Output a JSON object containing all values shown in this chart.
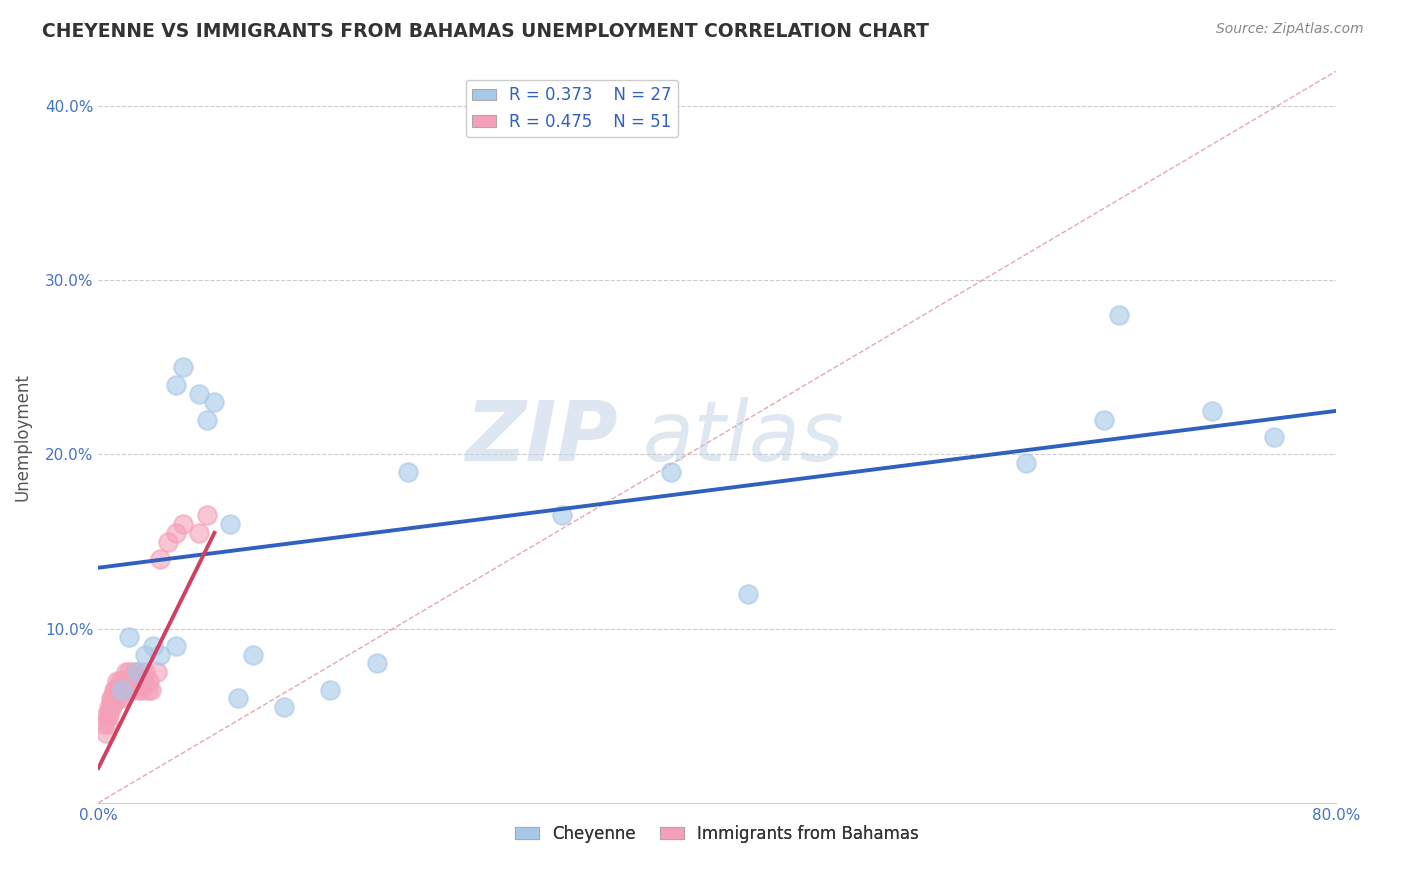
{
  "title": "CHEYENNE VS IMMIGRANTS FROM BAHAMAS UNEMPLOYMENT CORRELATION CHART",
  "source": "Source: ZipAtlas.com",
  "xlabel": "",
  "ylabel": "Unemployment",
  "xlim": [
    0,
    0.8
  ],
  "ylim": [
    0,
    0.42
  ],
  "xticks": [
    0.0,
    0.1,
    0.2,
    0.3,
    0.4,
    0.5,
    0.6,
    0.7,
    0.8
  ],
  "xticklabels": [
    "0.0%",
    "",
    "",
    "",
    "",
    "",
    "",
    "",
    "80.0%"
  ],
  "yticks": [
    0.0,
    0.1,
    0.2,
    0.3,
    0.4
  ],
  "yticklabels": [
    "",
    "10.0%",
    "20.0%",
    "30.0%",
    "40.0%"
  ],
  "legend_r1": "R = 0.373",
  "legend_n1": "N = 27",
  "legend_r2": "R = 0.475",
  "legend_n2": "N = 51",
  "cheyenne_color": "#a8c8e8",
  "bahamas_color": "#f4a0b8",
  "cheyenne_line_color": "#3060c0",
  "bahamas_line_color": "#d04060",
  "ref_line_color": "#e08090",
  "watermark_zip": "ZIP",
  "watermark_atlas": "atlas",
  "background_color": "#ffffff",
  "grid_color": "#cccccc",
  "cheyenne_x": [
    0.015,
    0.02,
    0.025,
    0.03,
    0.035,
    0.04,
    0.05,
    0.05,
    0.055,
    0.065,
    0.07,
    0.075,
    0.085,
    0.09,
    0.1,
    0.12,
    0.15,
    0.18,
    0.2,
    0.3,
    0.37,
    0.42,
    0.6,
    0.65,
    0.66,
    0.72,
    0.76
  ],
  "cheyenne_y": [
    0.065,
    0.095,
    0.075,
    0.085,
    0.09,
    0.085,
    0.09,
    0.24,
    0.25,
    0.235,
    0.22,
    0.23,
    0.16,
    0.06,
    0.085,
    0.055,
    0.065,
    0.08,
    0.19,
    0.165,
    0.19,
    0.12,
    0.195,
    0.22,
    0.28,
    0.225,
    0.21
  ],
  "bahamas_x": [
    0.003,
    0.004,
    0.005,
    0.006,
    0.006,
    0.007,
    0.007,
    0.008,
    0.008,
    0.009,
    0.009,
    0.01,
    0.01,
    0.011,
    0.011,
    0.012,
    0.012,
    0.013,
    0.013,
    0.014,
    0.014,
    0.015,
    0.015,
    0.016,
    0.016,
    0.017,
    0.017,
    0.018,
    0.018,
    0.019,
    0.02,
    0.021,
    0.022,
    0.023,
    0.024,
    0.025,
    0.026,
    0.027,
    0.028,
    0.029,
    0.03,
    0.032,
    0.033,
    0.034,
    0.038,
    0.04,
    0.045,
    0.05,
    0.055,
    0.065,
    0.07
  ],
  "bahamas_y": [
    0.045,
    0.05,
    0.04,
    0.05,
    0.045,
    0.055,
    0.05,
    0.06,
    0.055,
    0.06,
    0.055,
    0.065,
    0.06,
    0.065,
    0.06,
    0.07,
    0.065,
    0.065,
    0.06,
    0.065,
    0.07,
    0.065,
    0.06,
    0.07,
    0.065,
    0.07,
    0.065,
    0.075,
    0.07,
    0.07,
    0.075,
    0.07,
    0.065,
    0.075,
    0.07,
    0.075,
    0.065,
    0.07,
    0.065,
    0.07,
    0.075,
    0.065,
    0.07,
    0.065,
    0.075,
    0.14,
    0.15,
    0.155,
    0.16,
    0.155,
    0.165
  ],
  "cheyenne_line_x": [
    0.0,
    0.8
  ],
  "cheyenne_line_y": [
    0.135,
    0.225
  ],
  "bahamas_line_x": [
    0.0,
    0.075
  ],
  "bahamas_line_y": [
    0.02,
    0.155
  ]
}
